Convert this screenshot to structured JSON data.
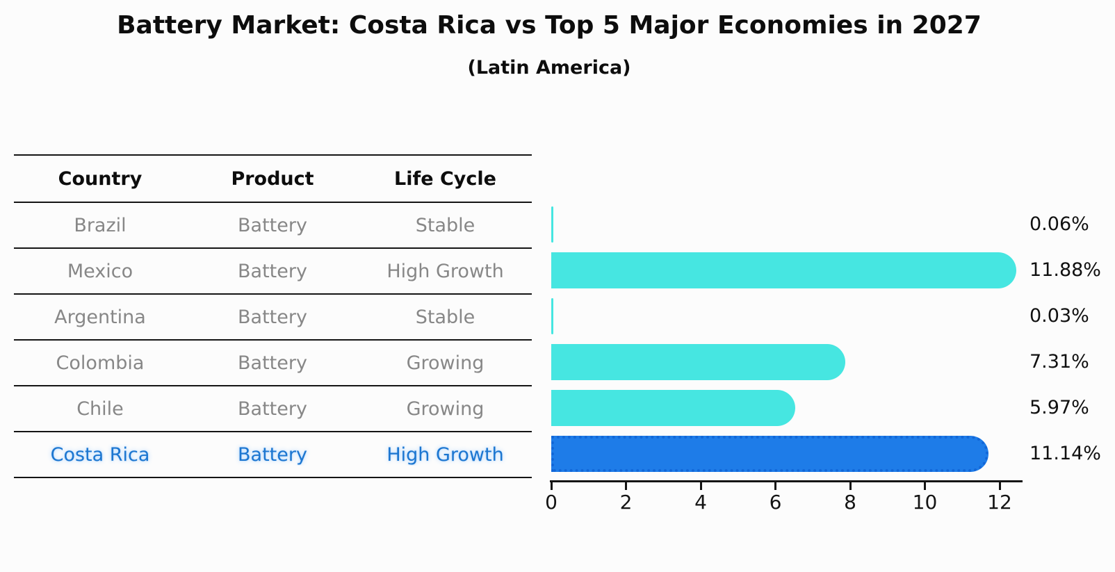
{
  "header": {
    "title": "Battery Market: Costa Rica vs Top 5 Major Economies in 2027",
    "subtitle": "(Latin America)"
  },
  "table": {
    "columns": [
      "Country",
      "Product",
      "Life Cycle"
    ],
    "rows": [
      {
        "country": "Brazil",
        "product": "Battery",
        "life_cycle": "Stable",
        "highlight": false
      },
      {
        "country": "Mexico",
        "product": "Battery",
        "life_cycle": "High Growth",
        "highlight": false
      },
      {
        "country": "Argentina",
        "product": "Battery",
        "life_cycle": "Stable",
        "highlight": false
      },
      {
        "country": "Colombia",
        "product": "Battery",
        "life_cycle": "Growing",
        "highlight": false
      },
      {
        "country": "Chile",
        "product": "Battery",
        "life_cycle": "Growing",
        "highlight": false
      },
      {
        "country": "Costa Rica",
        "product": "Battery",
        "life_cycle": "High Growth",
        "highlight": true
      }
    ]
  },
  "chart_data": {
    "type": "bar",
    "orientation": "horizontal",
    "title": "Battery Market: Costa Rica vs Top 5 Major Economies in 2027 (Latin America)",
    "categories": [
      "Brazil",
      "Mexico",
      "Argentina",
      "Colombia",
      "Chile",
      "Costa Rica"
    ],
    "values": [
      0.06,
      11.88,
      0.03,
      7.31,
      5.97,
      11.14
    ],
    "value_labels": [
      "0.06%",
      "11.88%",
      "0.03%",
      "7.31%",
      "5.97%",
      "11.14%"
    ],
    "xlabel": "",
    "ylabel": "",
    "x_ticks": [
      0,
      2,
      4,
      6,
      8,
      10,
      12
    ],
    "xlim": [
      0,
      12.6
    ],
    "grid": false,
    "legend": false,
    "highlight_category": "Costa Rica"
  },
  "colors": {
    "bar": "#46e6e1",
    "highlight_bar": "#1e7ce8",
    "highlight_bar_edge": "#1267d8",
    "highlight_text": "#1c76d0",
    "row_text": "#878787",
    "axis": "#141414",
    "value_text": "#101010"
  }
}
